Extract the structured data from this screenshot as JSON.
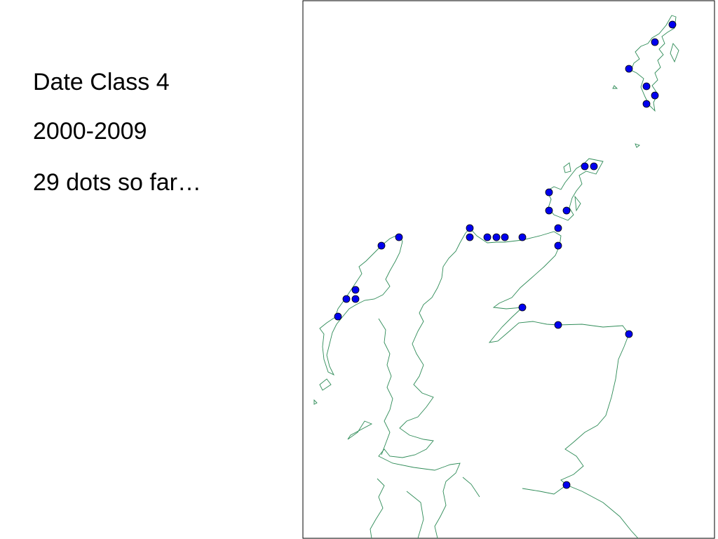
{
  "slide": {
    "lines": [
      "Date Class 4",
      "2000-2009",
      "29 dots so far…"
    ]
  },
  "map": {
    "region": "Scotland",
    "coastline_color": "#2e8b57",
    "dot_color": "#0000ee",
    "dot_outline_color": "#000000",
    "dot_count": 29
  }
}
